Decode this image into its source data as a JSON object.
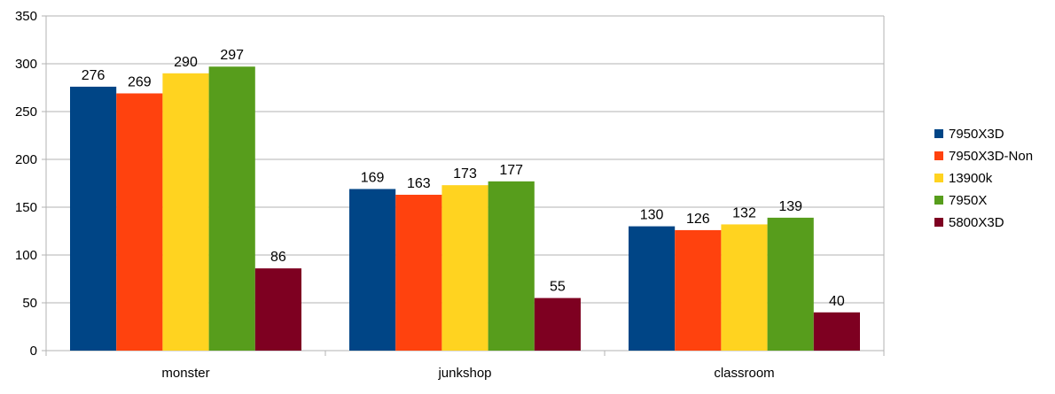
{
  "chart_data": {
    "type": "bar",
    "title": "",
    "xlabel": "",
    "ylabel": "",
    "ylim": [
      0,
      350
    ],
    "yticks": [
      0,
      50,
      100,
      150,
      200,
      250,
      300,
      350
    ],
    "grid": true,
    "legend_position": "right",
    "categories": [
      "monster",
      "junkshop",
      "classroom"
    ],
    "series": [
      {
        "name": "7950X3D",
        "color": "#004586",
        "values": [
          276,
          169,
          130
        ]
      },
      {
        "name": "7950X3D-Non",
        "color": "#ff420e",
        "values": [
          269,
          163,
          126
        ]
      },
      {
        "name": "13900k",
        "color": "#ffd320",
        "values": [
          290,
          173,
          132
        ]
      },
      {
        "name": "7950X",
        "color": "#579d1c",
        "values": [
          297,
          177,
          139
        ]
      },
      {
        "name": "5800X3D",
        "color": "#7e0021",
        "values": [
          86,
          55,
          40
        ]
      }
    ]
  }
}
